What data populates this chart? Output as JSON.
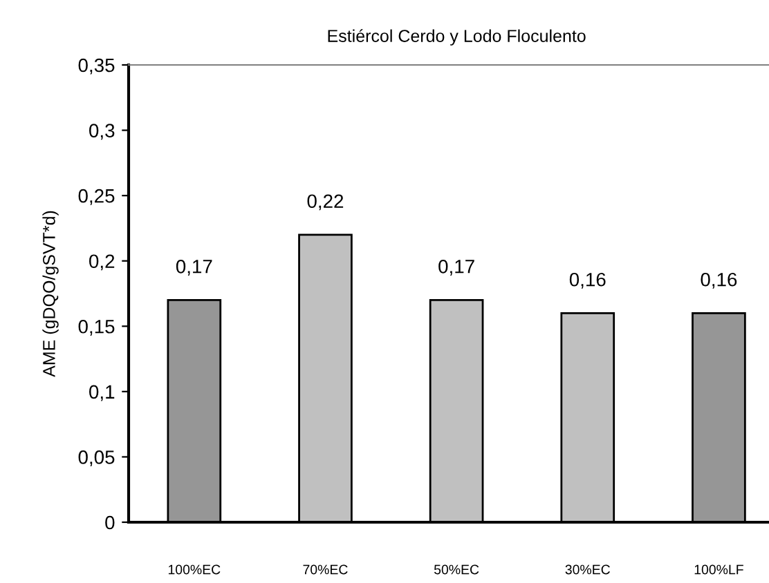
{
  "chart_data": {
    "type": "bar",
    "title": "Estiércol Cerdo y Lodo Floculento",
    "ylabel": "AME (gDQO/gSVT*d)",
    "categories": [
      "100%EC",
      "70%EC",
      "50%EC",
      "30%EC",
      "100%LF"
    ],
    "values": [
      0.17,
      0.22,
      0.17,
      0.16,
      0.16
    ],
    "colors": [
      "#969696",
      "#c0c0c0",
      "#c0c0c0",
      "#c0c0c0",
      "#969696"
    ],
    "value_labels": [
      "0,17",
      "0,22",
      "0,17",
      "0,16",
      "0,16"
    ],
    "ylim": [
      0,
      0.35
    ],
    "yticks": [
      {
        "value": 0,
        "label": "0"
      },
      {
        "value": 0.05,
        "label": "0,05"
      },
      {
        "value": 0.1,
        "label": "0,1"
      },
      {
        "value": 0.15,
        "label": "0,15"
      },
      {
        "value": 0.2,
        "label": "0,2"
      },
      {
        "value": 0.25,
        "label": "0,25"
      },
      {
        "value": 0.3,
        "label": "0,3"
      },
      {
        "value": 0.35,
        "label": "0,35"
      }
    ],
    "grid": false,
    "legend": false
  }
}
